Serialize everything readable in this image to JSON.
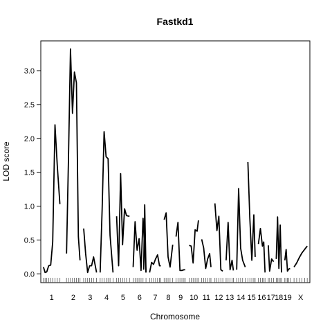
{
  "chart_data": {
    "type": "line",
    "title": "Fastkd1",
    "xlabel": "Chromosome",
    "ylabel": "LOD score",
    "ylim": [
      -0.13,
      3.44
    ],
    "yticks": [
      0.0,
      0.5,
      1.0,
      1.5,
      2.0,
      2.5,
      3.0
    ],
    "ytick_labels": [
      "0.0",
      "0.5",
      "1.0",
      "1.5",
      "2.0",
      "2.5",
      "3.0"
    ],
    "grid": false,
    "legend": "none",
    "line_color": "#000000",
    "chromosomes": [
      {
        "label": "1",
        "start": 0,
        "end": 25,
        "markers": [
          0,
          2.5,
          5,
          8,
          11,
          14,
          17.5,
          21,
          25
        ]
      },
      {
        "label": "2",
        "start": 35,
        "end": 55.5,
        "markers": [
          35,
          38,
          41,
          44,
          47,
          50,
          53,
          55.5
        ]
      },
      {
        "label": "3",
        "start": 61,
        "end": 80.5,
        "markers": [
          61,
          64,
          67,
          70,
          73,
          76,
          80.5
        ]
      },
      {
        "label": "4",
        "start": 86,
        "end": 105.5,
        "markers": [
          86,
          89,
          92,
          95,
          98,
          101,
          105.5
        ]
      },
      {
        "label": "5",
        "start": 111,
        "end": 130.5,
        "markers": [
          111,
          114,
          117,
          120,
          123,
          126,
          130.5
        ]
      },
      {
        "label": "6",
        "start": 136,
        "end": 155.5,
        "markers": [
          136,
          139,
          142,
          145,
          148,
          151,
          155.5
        ]
      },
      {
        "label": "7",
        "start": 161,
        "end": 178,
        "markers": [
          161,
          164,
          167,
          170,
          173,
          176,
          178
        ]
      },
      {
        "label": "8",
        "start": 183,
        "end": 196,
        "markers": [
          183,
          186,
          189,
          192,
          196
        ]
      },
      {
        "label": "9",
        "start": 201,
        "end": 215,
        "markers": [
          201,
          204,
          207,
          210,
          213,
          215
        ]
      },
      {
        "label": "10",
        "start": 221,
        "end": 235,
        "markers": [
          221,
          224,
          227,
          230,
          233,
          235
        ]
      },
      {
        "label": "11",
        "start": 240,
        "end": 254,
        "markers": [
          240,
          243,
          246,
          249,
          252,
          254
        ]
      },
      {
        "label": "12",
        "start": 260,
        "end": 272,
        "markers": [
          260,
          263,
          266,
          269,
          272
        ]
      },
      {
        "label": "13",
        "start": 277,
        "end": 288,
        "markers": [
          277,
          280,
          283,
          286,
          288
        ]
      },
      {
        "label": "14",
        "start": 293,
        "end": 306,
        "markers": [
          293,
          296,
          299,
          302,
          306
        ]
      },
      {
        "label": "15",
        "start": 310,
        "end": 321,
        "markers": [
          310,
          313,
          316,
          319,
          321
        ]
      },
      {
        "label": "16",
        "start": 326,
        "end": 336,
        "markers": [
          326,
          329,
          332,
          334,
          336
        ]
      },
      {
        "label": "17",
        "start": 341,
        "end": 349,
        "markers": [
          341,
          343,
          346,
          349
        ]
      },
      {
        "label": "18",
        "start": 353,
        "end": 361,
        "markers": [
          353,
          355,
          357,
          359,
          361
        ]
      },
      {
        "label": "19",
        "start": 366,
        "end": 374,
        "markers": [
          366,
          368,
          370,
          372,
          374
        ]
      },
      {
        "label": "X",
        "start": 380,
        "end": 400,
        "markers": [
          380,
          384,
          388,
          392,
          396,
          400
        ]
      }
    ],
    "series": [
      {
        "chromosome": "1",
        "x": [
          0,
          2.5,
          5,
          8,
          11,
          14,
          17.5,
          21,
          25
        ],
        "y": [
          0.1,
          0.02,
          0.03,
          0.12,
          0.13,
          0.47,
          2.2,
          1.6,
          1.03
        ]
      },
      {
        "chromosome": "2",
        "x": [
          35,
          38,
          41,
          44,
          47,
          50,
          53,
          55.5
        ],
        "y": [
          0.3,
          1.7,
          3.32,
          2.37,
          2.98,
          2.82,
          0.55,
          0.2
        ]
      },
      {
        "chromosome": "3",
        "x": [
          61,
          64,
          67,
          70,
          73,
          76,
          80.5
        ],
        "y": [
          0.67,
          0.3,
          0.02,
          0.12,
          0.12,
          0.25,
          0.02
        ]
      },
      {
        "chromosome": "4",
        "x": [
          86,
          89,
          92,
          95,
          98,
          101,
          105.5
        ],
        "y": [
          0.02,
          0.96,
          2.1,
          1.73,
          1.7,
          0.57,
          0.02
        ]
      },
      {
        "chromosome": "5",
        "x": [
          111,
          114,
          117,
          120,
          123,
          126,
          130.5
        ],
        "y": [
          0.85,
          0.12,
          1.48,
          0.43,
          0.96,
          0.86,
          0.85
        ]
      },
      {
        "chromosome": "6",
        "x": [
          136,
          139,
          142,
          145,
          148,
          151,
          155.5
        ],
        "y": [
          0.1,
          0.77,
          0.35,
          0.52,
          0.05,
          0.82,
          0.02
        ]
      },
      {
        "chromosome": "6b",
        "x": [
          152,
          153.5,
          155.5
        ],
        "y": [
          0.06,
          1.02,
          0.02
        ]
      },
      {
        "chromosome": "7",
        "x": [
          161,
          164,
          167,
          170,
          173,
          176,
          178
        ],
        "y": [
          0.02,
          0.17,
          0.14,
          0.22,
          0.28,
          0.12,
          0.12
        ]
      },
      {
        "chromosome": "8",
        "x": [
          183,
          186,
          189,
          192,
          196
        ],
        "y": [
          0.8,
          0.9,
          0.25,
          0.1,
          0.43
        ]
      },
      {
        "chromosome": "9",
        "x": [
          201,
          204,
          207,
          210,
          213,
          215
        ],
        "y": [
          0.55,
          0.76,
          0.05,
          0.05,
          0.06,
          0.06
        ]
      },
      {
        "chromosome": "10",
        "x": [
          221,
          224,
          227,
          230,
          233,
          235
        ],
        "y": [
          0.42,
          0.41,
          0.16,
          0.65,
          0.63,
          0.79
        ]
      },
      {
        "chromosome": "11",
        "x": [
          240,
          243,
          246,
          249,
          252,
          254
        ],
        "y": [
          0.51,
          0.38,
          0.08,
          0.22,
          0.3,
          0.1
        ]
      },
      {
        "chromosome": "12",
        "x": [
          260,
          263,
          266,
          269,
          272
        ],
        "y": [
          1.04,
          0.64,
          0.85,
          0.06,
          0.04
        ]
      },
      {
        "chromosome": "13",
        "x": [
          277,
          280,
          283,
          286,
          288
        ],
        "y": [
          0.2,
          0.76,
          0.06,
          0.2,
          0.05
        ]
      },
      {
        "chromosome": "14",
        "x": [
          293,
          296,
          299,
          302,
          306
        ],
        "y": [
          0.06,
          1.26,
          0.38,
          0.2,
          0.1
        ]
      },
      {
        "chromosome": "15",
        "x": [
          310,
          313,
          316,
          319,
          321
        ],
        "y": [
          1.65,
          0.82,
          0.2,
          0.87,
          0.25
        ]
      },
      {
        "chromosome": "16",
        "x": [
          326,
          329,
          332,
          334,
          336
        ],
        "y": [
          0.44,
          0.67,
          0.41,
          0.47,
          0.02
        ]
      },
      {
        "chromosome": "17",
        "x": [
          341,
          343,
          346,
          349
        ],
        "y": [
          0.42,
          0.04,
          0.22,
          0.18
        ]
      },
      {
        "chromosome": "18",
        "x": [
          353,
          355,
          357,
          359,
          361
        ],
        "y": [
          0.22,
          0.84,
          0.08,
          0.72,
          0.02
        ]
      },
      {
        "chromosome": "19",
        "x": [
          366,
          368,
          370,
          372,
          374
        ],
        "y": [
          0.2,
          0.36,
          0.04,
          0.07,
          0.08
        ]
      },
      {
        "chromosome": "X",
        "x": [
          380,
          384,
          388,
          392,
          396,
          400
        ],
        "y": [
          0.1,
          0.16,
          0.24,
          0.31,
          0.36,
          0.41
        ]
      }
    ]
  }
}
